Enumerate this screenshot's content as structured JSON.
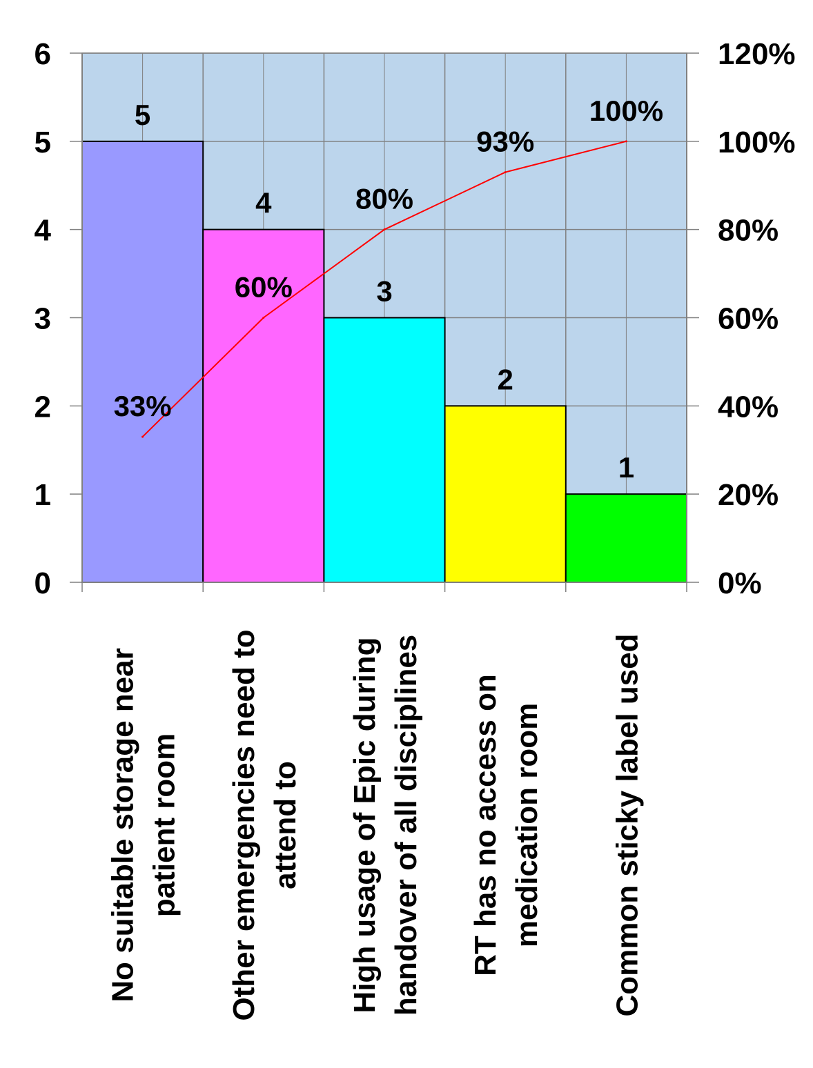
{
  "chart_data": {
    "type": "bar",
    "categories": [
      [
        "No suitable storage near",
        "patient room"
      ],
      [
        "Other emergencies need to",
        "attend to"
      ],
      [
        "High usage of Epic during",
        "handover of all disciplines"
      ],
      [
        "RT has no access on",
        "medication room"
      ],
      [
        "Common sticky label used"
      ]
    ],
    "series": [
      {
        "values": [
          5,
          4,
          3,
          2,
          1
        ],
        "color": "#9999ff",
        "bar_colors": [
          "#9999ff",
          "#ff66ff",
          "#00ffff",
          "#ffff00",
          "#00ff00"
        ]
      },
      {
        "values": [
          33,
          60,
          80,
          93,
          100
        ],
        "axis": "right",
        "color": "#ff0000"
      }
    ],
    "data_labels_left": [
      "5",
      "4",
      "3",
      "2",
      "1"
    ],
    "data_labels_right": [
      "33%",
      "60%",
      "80%",
      "93%",
      "100%"
    ],
    "ylim": [
      0,
      6
    ],
    "yticks": [
      "0",
      "1",
      "2",
      "3",
      "4",
      "5",
      "6"
    ],
    "y2lim": [
      0,
      120
    ],
    "y2ticks": [
      "0%",
      "20%",
      "40%",
      "60%",
      "80%",
      "100%",
      "120%"
    ],
    "title": "",
    "xlabel": "",
    "ylabel": "",
    "plot_background": "#bcd5ec",
    "grid": true,
    "legend": "none"
  }
}
